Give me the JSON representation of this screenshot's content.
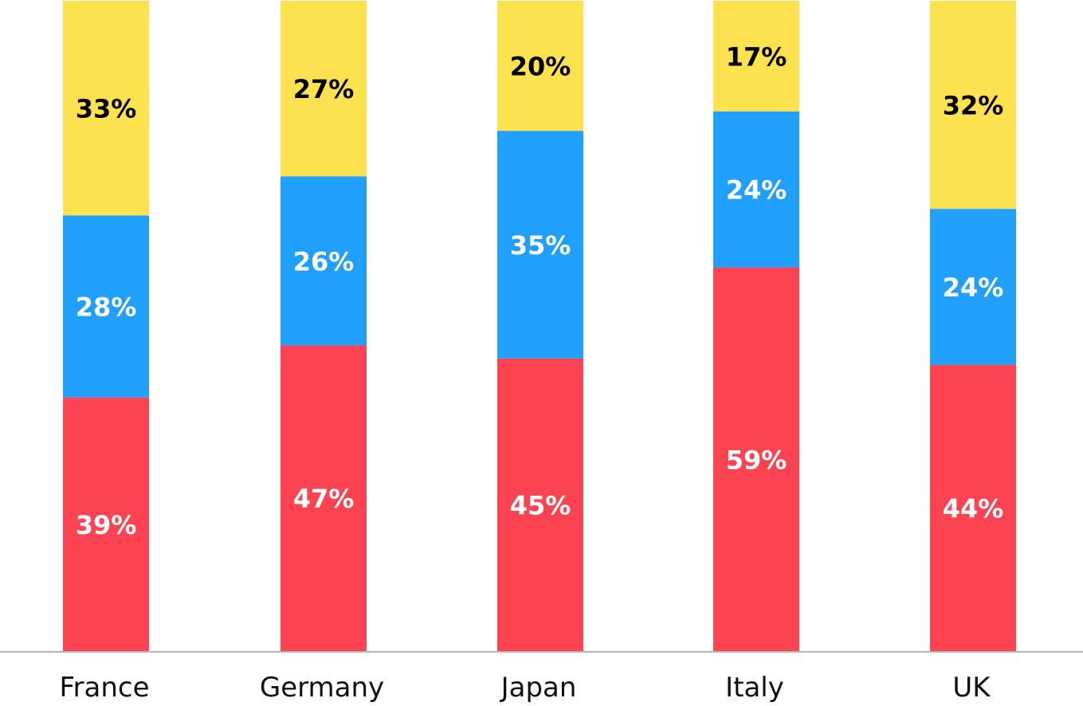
{
  "chart_data": {
    "type": "bar",
    "stacked": true,
    "normalized": true,
    "categories": [
      "France",
      "Germany",
      "Japan",
      "Italy",
      "UK"
    ],
    "series": [
      {
        "values": [
          39,
          47,
          45,
          59,
          44
        ],
        "color": "#fc4352",
        "label_color": "#ffffff"
      },
      {
        "values": [
          28,
          26,
          35,
          24,
          24
        ],
        "color": "#209ffd",
        "label_color": "#ffffff"
      },
      {
        "values": [
          33,
          27,
          20,
          17,
          32
        ],
        "color": "#fde24f",
        "label_color": "#000000"
      }
    ],
    "ylim": [
      0,
      100
    ],
    "value_suffix": "%",
    "grid": false,
    "legend": "none",
    "axis_line_color": "#b3b3b3",
    "title": "",
    "xlabel": "",
    "ylabel": ""
  }
}
